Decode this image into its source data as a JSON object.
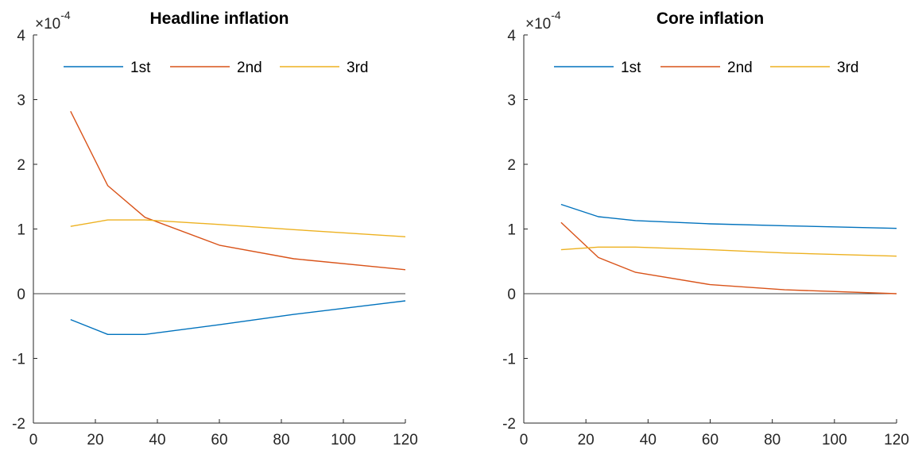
{
  "chart_data": [
    {
      "type": "line",
      "title": "Headline inflation",
      "xlabel": "",
      "ylabel": "",
      "xlim": [
        0,
        120
      ],
      "ylim": [
        -2,
        4
      ],
      "x_ticks": [
        0,
        20,
        40,
        60,
        80,
        100,
        120
      ],
      "y_ticks": [
        -2,
        -1,
        0,
        1,
        2,
        3,
        4
      ],
      "y_multiplier": "10",
      "y_multiplier_prefix": "×",
      "y_multiplier_exponent": "-4",
      "grid": false,
      "legend_position": "top",
      "zero_line": true,
      "series": [
        {
          "name": "1st",
          "color": "#0072BD",
          "x": [
            12,
            24,
            36,
            60,
            84,
            120
          ],
          "y": [
            -0.4,
            -0.63,
            -0.63,
            -0.48,
            -0.32,
            -0.11
          ]
        },
        {
          "name": "2nd",
          "color": "#D95319",
          "x": [
            12,
            24,
            36,
            60,
            84,
            120
          ],
          "y": [
            2.82,
            1.67,
            1.18,
            0.75,
            0.54,
            0.37
          ]
        },
        {
          "name": "3rd",
          "color": "#EDB120",
          "x": [
            12,
            24,
            36,
            60,
            84,
            120
          ],
          "y": [
            1.04,
            1.14,
            1.14,
            1.07,
            0.99,
            0.88
          ]
        }
      ]
    },
    {
      "type": "line",
      "title": "Core inflation",
      "xlabel": "",
      "ylabel": "",
      "xlim": [
        0,
        120
      ],
      "ylim": [
        -2,
        4
      ],
      "x_ticks": [
        0,
        20,
        40,
        60,
        80,
        100,
        120
      ],
      "y_ticks": [
        -2,
        -1,
        0,
        1,
        2,
        3,
        4
      ],
      "y_multiplier": "10",
      "y_multiplier_prefix": "×",
      "y_multiplier_exponent": "-4",
      "grid": false,
      "legend_position": "top",
      "zero_line": true,
      "series": [
        {
          "name": "1st",
          "color": "#0072BD",
          "x": [
            12,
            24,
            36,
            60,
            84,
            120
          ],
          "y": [
            1.38,
            1.19,
            1.13,
            1.08,
            1.05,
            1.01
          ]
        },
        {
          "name": "2nd",
          "color": "#D95319",
          "x": [
            12,
            24,
            36,
            60,
            84,
            120
          ],
          "y": [
            1.1,
            0.56,
            0.33,
            0.14,
            0.06,
            0.0
          ]
        },
        {
          "name": "3rd",
          "color": "#EDB120",
          "x": [
            12,
            24,
            36,
            60,
            84,
            120
          ],
          "y": [
            0.68,
            0.72,
            0.72,
            0.68,
            0.63,
            0.58
          ]
        }
      ]
    }
  ]
}
